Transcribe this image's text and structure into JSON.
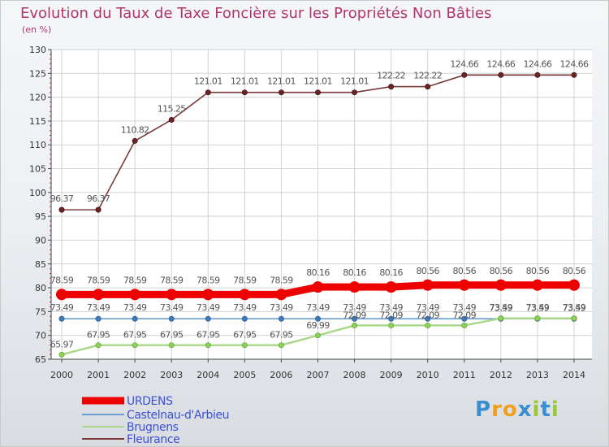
{
  "title": "Evolution du Taux de Taxe Foncière sur les Propriétés Non Bâties",
  "unit_label": "(en %)",
  "brand": {
    "text": "Proxiti",
    "letters": [
      "P",
      "r",
      "o",
      "x",
      "i",
      "t",
      "i"
    ],
    "colors": [
      "#3a8fd1",
      "#f0a020",
      "#f0a020",
      "#3a8fd1",
      "#9ac83a",
      "#3a8fd1",
      "#9ac83a"
    ]
  },
  "colors": {
    "title": "#b0356e",
    "legend_text": "#3b50d6",
    "grid": "#d2d2d2",
    "axis": "#444444",
    "tick_text": "#333333",
    "value_text": "#555555"
  },
  "chart_data": {
    "type": "line",
    "title": "Evolution du Taux de Taxe Foncière sur les Propriétés Non Bâties",
    "ylabel": "(en %)",
    "xlabel": "",
    "ylim": [
      65,
      130
    ],
    "ytick_step": 5,
    "grid": true,
    "legend_position": "bottom-left",
    "categories": [
      "2000",
      "2001",
      "2002",
      "2003",
      "2004",
      "2005",
      "2006",
      "2007",
      "2008",
      "2009",
      "2010",
      "2011",
      "2012",
      "2013",
      "2014"
    ],
    "series": [
      {
        "name": "URDENS",
        "color": "#ee0000",
        "values": [
          78.59,
          78.59,
          78.59,
          78.59,
          78.59,
          78.59,
          78.59,
          80.16,
          80.16,
          80.16,
          80.56,
          80.56,
          80.56,
          80.56,
          80.56
        ],
        "labels": [
          "78.59",
          "78.59",
          "78.59",
          "78.59",
          "78.59",
          "78.59",
          "78.59",
          "80.16",
          "80.16",
          "80.16",
          "80.56",
          "80.56",
          "80.56",
          "80.56",
          "80.56"
        ]
      },
      {
        "name": "Castelnau-d'Arbieu",
        "color": "#6a9ed0",
        "values": [
          73.49,
          73.49,
          73.49,
          73.49,
          73.49,
          73.49,
          73.49,
          73.49,
          73.49,
          73.49,
          73.49,
          73.49,
          73.49,
          73.49,
          73.49
        ],
        "labels": [
          "73.49",
          "73.49",
          "73.49",
          "73.49",
          "73.49",
          "73.49",
          "73.49",
          "73.49",
          "73.49",
          "73.49",
          "73.49",
          "73.49",
          "73.49",
          "73.49",
          "73.49"
        ]
      },
      {
        "name": "Brugnens",
        "color": "#a8d888",
        "values": [
          65.97,
          67.95,
          67.95,
          67.95,
          67.95,
          67.95,
          67.95,
          69.99,
          72.09,
          72.09,
          72.09,
          72.09,
          73.59,
          73.59,
          73.59
        ],
        "labels": [
          "65.97",
          "67.95",
          "67.95",
          "67.95",
          "67.95",
          "67.95",
          "67.95",
          "69.99",
          "72.09",
          "72.09",
          "72.09",
          "72.09",
          "73.59",
          "73.59",
          "73.59"
        ]
      },
      {
        "name": "Fleurance",
        "color": "#7a3a3a",
        "values": [
          96.37,
          96.37,
          110.82,
          115.25,
          121.01,
          121.01,
          121.01,
          121.01,
          121.01,
          122.22,
          122.22,
          124.66,
          124.66,
          124.66,
          124.66
        ],
        "labels": [
          "96.37",
          "96.37",
          "110.82",
          "115.25",
          "121.01",
          "121.01",
          "121.01",
          "121.01",
          "121.01",
          "122.22",
          "122.22",
          "124.66",
          "124.66",
          "124.66",
          "124.66"
        ]
      }
    ]
  }
}
